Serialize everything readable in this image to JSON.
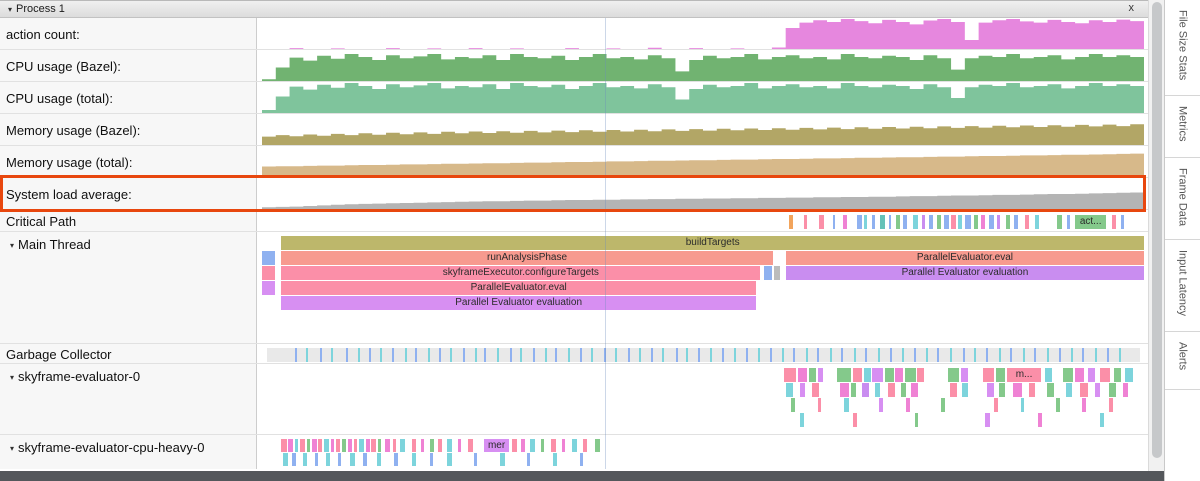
{
  "header": {
    "title": "Process 1",
    "close_label": "x"
  },
  "icons": {
    "collapse": "▾"
  },
  "palette": {
    "kh": "#bdb76b",
    "sa": "#f79a8f",
    "pk": "#fb8fa8",
    "vi": "#d78ff2",
    "pu": "#c98df0",
    "bl": "#8fb1f0",
    "cy": "#7dd4dc",
    "gr": "#84c98b",
    "ma": "#ef82d4",
    "or": "#f2a45c",
    "te": "#66c2b8",
    "gy": "#bcbcbc"
  },
  "counter_rows": [
    {
      "label": "action count:",
      "color": "#e687de",
      "values": [
        0,
        0,
        0.03,
        0,
        0,
        0.02,
        0,
        0,
        0,
        0.03,
        0,
        0,
        0.02,
        0,
        0,
        0.03,
        0,
        0,
        0.02,
        0,
        0,
        0,
        0.03,
        0,
        0,
        0.02,
        0,
        0,
        0.04,
        0,
        0,
        0.03,
        0,
        0,
        0.02,
        0,
        0,
        0.05,
        0.7,
        0.88,
        0.96,
        0.9,
        1,
        0.93,
        0.86,
        0.97,
        0.9,
        0.82,
        0.95,
        1,
        0.9,
        0.3,
        0.88,
        0.96,
        1,
        0.92,
        0.88,
        0.97,
        0.9,
        0.86,
        0.96,
        0.9,
        0.98,
        0.93
      ]
    },
    {
      "label": "CPU usage (Bazel):",
      "color": "#71b371",
      "values": [
        0.06,
        0.45,
        0.78,
        0.68,
        0.84,
        0.74,
        0.9,
        0.8,
        0.7,
        0.86,
        0.76,
        0.82,
        0.9,
        0.72,
        0.8,
        0.76,
        0.86,
        0.7,
        0.9,
        0.8,
        0.76,
        0.84,
        0.7,
        0.8,
        0.9,
        0.76,
        0.8,
        0.72,
        0.86,
        0.76,
        0.32,
        0.7,
        0.84,
        0.76,
        0.8,
        0.9,
        0.72,
        0.8,
        0.86,
        0.76,
        0.8,
        0.72,
        0.9,
        0.8,
        0.76,
        0.84,
        0.8,
        0.7,
        0.86,
        0.76,
        0.38,
        0.76,
        0.84,
        0.8,
        0.9,
        0.76,
        0.8,
        0.86,
        0.72,
        0.8,
        0.9,
        0.8,
        0.86,
        0.8
      ]
    },
    {
      "label": "CPU usage (total):",
      "color": "#7fc49c",
      "values": [
        0.1,
        0.55,
        0.88,
        0.78,
        0.94,
        0.84,
        1,
        0.9,
        0.8,
        0.96,
        0.86,
        0.92,
        1,
        0.82,
        0.9,
        0.86,
        0.96,
        0.8,
        1,
        0.9,
        0.86,
        0.94,
        0.8,
        0.9,
        1,
        0.86,
        0.9,
        0.82,
        0.96,
        0.86,
        0.45,
        0.8,
        0.94,
        0.86,
        0.9,
        1,
        0.82,
        0.9,
        0.96,
        0.86,
        0.9,
        0.82,
        1,
        0.9,
        0.86,
        0.94,
        0.9,
        0.8,
        0.96,
        0.86,
        0.5,
        0.86,
        0.94,
        0.9,
        1,
        0.86,
        0.9,
        0.96,
        0.82,
        0.9,
        1,
        0.9,
        0.96,
        0.9
      ]
    },
    {
      "label": "Memory usage (Bazel):",
      "color": "#b2a666",
      "values": [
        0.28,
        0.33,
        0.29,
        0.35,
        0.31,
        0.37,
        0.33,
        0.39,
        0.34,
        0.41,
        0.36,
        0.42,
        0.37,
        0.44,
        0.39,
        0.45,
        0.4,
        0.46,
        0.41,
        0.47,
        0.42,
        0.48,
        0.43,
        0.49,
        0.44,
        0.5,
        0.45,
        0.51,
        0.46,
        0.52,
        0.47,
        0.53,
        0.48,
        0.54,
        0.49,
        0.55,
        0.5,
        0.56,
        0.51,
        0.57,
        0.52,
        0.58,
        0.53,
        0.59,
        0.54,
        0.6,
        0.55,
        0.61,
        0.56,
        0.62,
        0.57,
        0.63,
        0.58,
        0.64,
        0.59,
        0.65,
        0.6,
        0.66,
        0.61,
        0.67,
        0.62,
        0.68,
        0.63,
        0.69
      ]
    },
    {
      "label": "Memory usage (total):",
      "color": "#d7b98a",
      "values": [
        0.35,
        0.36,
        0.36,
        0.37,
        0.38,
        0.38,
        0.39,
        0.4,
        0.4,
        0.41,
        0.42,
        0.42,
        0.43,
        0.44,
        0.44,
        0.45,
        0.46,
        0.46,
        0.47,
        0.48,
        0.48,
        0.49,
        0.5,
        0.5,
        0.51,
        0.52,
        0.52,
        0.53,
        0.54,
        0.54,
        0.55,
        0.56,
        0.56,
        0.57,
        0.58,
        0.58,
        0.59,
        0.6,
        0.6,
        0.61,
        0.62,
        0.62,
        0.63,
        0.64,
        0.64,
        0.65,
        0.66,
        0.66,
        0.67,
        0.68,
        0.68,
        0.69,
        0.7,
        0.7,
        0.71,
        0.72,
        0.72,
        0.73,
        0.74,
        0.74,
        0.75,
        0.76,
        0.77,
        0.78
      ]
    },
    {
      "label": "System load average:",
      "color": "#b4b4b4",
      "values": [
        0.06,
        0.07,
        0.08,
        0.1,
        0.12,
        0.14,
        0.16,
        0.17,
        0.18,
        0.19,
        0.2,
        0.21,
        0.22,
        0.23,
        0.24,
        0.25,
        0.26,
        0.26,
        0.27,
        0.28,
        0.28,
        0.29,
        0.3,
        0.3,
        0.31,
        0.31,
        0.32,
        0.32,
        0.33,
        0.33,
        0.34,
        0.34,
        0.35,
        0.35,
        0.36,
        0.36,
        0.37,
        0.37,
        0.38,
        0.38,
        0.39,
        0.39,
        0.4,
        0.4,
        0.41,
        0.41,
        0.42,
        0.43,
        0.43,
        0.44,
        0.45,
        0.45,
        0.46,
        0.47,
        0.47,
        0.48,
        0.49,
        0.5,
        0.5,
        0.51,
        0.52,
        0.53,
        0.54,
        0.55
      ]
    }
  ],
  "critical_path": {
    "label": "Critical Path",
    "slices": [
      [
        0.598,
        0.005,
        "or"
      ],
      [
        0.615,
        0.004,
        "pk"
      ],
      [
        0.632,
        0.006,
        "pk"
      ],
      [
        0.648,
        0.003,
        "bl"
      ],
      [
        0.66,
        0.004,
        "ma"
      ],
      [
        0.676,
        0.005,
        "bl"
      ],
      [
        0.684,
        0.003,
        "cy"
      ],
      [
        0.693,
        0.004,
        "bl"
      ],
      [
        0.702,
        0.006,
        "te"
      ],
      [
        0.712,
        0.003,
        "bl"
      ],
      [
        0.72,
        0.005,
        "gr"
      ],
      [
        0.729,
        0.004,
        "bl"
      ],
      [
        0.74,
        0.006,
        "cy"
      ],
      [
        0.75,
        0.004,
        "pu"
      ],
      [
        0.758,
        0.005,
        "bl"
      ],
      [
        0.768,
        0.004,
        "gr"
      ],
      [
        0.775,
        0.006,
        "bl"
      ],
      [
        0.784,
        0.005,
        "pk"
      ],
      [
        0.792,
        0.004,
        "cy"
      ],
      [
        0.8,
        0.006,
        "bl"
      ],
      [
        0.81,
        0.005,
        "gr"
      ],
      [
        0.818,
        0.004,
        "ma"
      ],
      [
        0.827,
        0.006,
        "bl"
      ],
      [
        0.836,
        0.004,
        "pu"
      ],
      [
        0.846,
        0.005,
        "gr"
      ],
      [
        0.856,
        0.004,
        "bl"
      ],
      [
        0.868,
        0.005,
        "pk"
      ],
      [
        0.88,
        0.004,
        "cy"
      ],
      [
        0.905,
        0.006,
        "gr"
      ],
      [
        0.916,
        0.004,
        "bl"
      ],
      [
        0.926,
        0.035,
        "gr",
        "act..."
      ],
      [
        0.968,
        0.005,
        "pk"
      ],
      [
        0.978,
        0.004,
        "bl"
      ]
    ]
  },
  "main_thread": {
    "label": "Main Thread",
    "levels": [
      [
        [
          0.022,
          0.978,
          "kh",
          "buildTargets"
        ]
      ],
      [
        [
          0,
          0.015,
          "bl"
        ],
        [
          0.022,
          0.557,
          "sa",
          "runAnalysisPhase"
        ],
        [
          0.594,
          0.406,
          "sa",
          "ParallelEvaluator.eval"
        ]
      ],
      [
        [
          0,
          0.015,
          "pk"
        ],
        [
          0.022,
          0.543,
          "pk",
          "skyframeExecutor.configureTargets"
        ],
        [
          0.569,
          0.009,
          "bl"
        ],
        [
          0.581,
          0.006,
          "gy"
        ],
        [
          0.594,
          0.406,
          "pu",
          "Parallel Evaluator evaluation"
        ]
      ],
      [
        [
          0,
          0.015,
          "vi"
        ],
        [
          0.022,
          0.538,
          "pk",
          "ParallelEvaluator.eval"
        ]
      ],
      [
        [
          0.022,
          0.538,
          "vi",
          "Parallel Evaluator evaluation"
        ]
      ]
    ]
  },
  "garbage_collector": {
    "label": "Garbage Collector",
    "ticks": [
      0.032,
      0.045,
      0.061,
      0.073,
      0.09,
      0.104,
      0.117,
      0.129,
      0.143,
      0.158,
      0.169,
      0.184,
      0.197,
      0.21,
      0.224,
      0.238,
      0.249,
      0.263,
      0.278,
      0.29,
      0.305,
      0.318,
      0.33,
      0.345,
      0.359,
      0.371,
      0.386,
      0.399,
      0.413,
      0.426,
      0.44,
      0.453,
      0.468,
      0.48,
      0.494,
      0.508,
      0.521,
      0.535,
      0.549,
      0.562,
      0.576,
      0.59,
      0.603,
      0.617,
      0.63,
      0.645,
      0.658,
      0.672,
      0.685,
      0.7,
      0.714,
      0.727,
      0.741,
      0.755,
      0.768,
      0.782,
      0.797,
      0.81,
      0.824,
      0.838,
      0.851,
      0.866,
      0.879,
      0.893,
      0.907,
      0.921,
      0.934,
      0.948,
      0.962,
      0.976
    ]
  },
  "evaluator0": {
    "label": "skyframe-evaluator-0",
    "rows": [
      [
        [
          0.592,
          0.014,
          "pk"
        ],
        [
          0.608,
          0.01,
          "ma"
        ],
        [
          0.62,
          0.008,
          "gr"
        ],
        [
          0.63,
          0.006,
          "vi"
        ],
        [
          0.652,
          0.016,
          "gr"
        ],
        [
          0.67,
          0.01,
          "pk"
        ],
        [
          0.682,
          0.008,
          "cy"
        ],
        [
          0.692,
          0.012,
          "vi"
        ],
        [
          0.706,
          0.01,
          "gr"
        ],
        [
          0.718,
          0.009,
          "ma"
        ],
        [
          0.729,
          0.012,
          "gr"
        ],
        [
          0.743,
          0.008,
          "pk"
        ],
        [
          0.778,
          0.012,
          "gr"
        ],
        [
          0.792,
          0.008,
          "vi"
        ],
        [
          0.818,
          0.012,
          "pk"
        ],
        [
          0.832,
          0.01,
          "gr"
        ],
        [
          0.845,
          0.038,
          "pk",
          "m..."
        ],
        [
          0.888,
          0.008,
          "cy"
        ],
        [
          0.908,
          0.012,
          "gr"
        ],
        [
          0.922,
          0.01,
          "ma"
        ],
        [
          0.936,
          0.008,
          "vi"
        ],
        [
          0.95,
          0.012,
          "pk"
        ],
        [
          0.966,
          0.008,
          "gr"
        ],
        [
          0.978,
          0.01,
          "cy"
        ]
      ],
      [
        [
          0.594,
          0.008,
          "cy"
        ],
        [
          0.61,
          0.006,
          "vi"
        ],
        [
          0.624,
          0.008,
          "pk"
        ],
        [
          0.655,
          0.01,
          "ma"
        ],
        [
          0.668,
          0.006,
          "gr"
        ],
        [
          0.68,
          0.008,
          "pu"
        ],
        [
          0.695,
          0.006,
          "cy"
        ],
        [
          0.71,
          0.008,
          "pk"
        ],
        [
          0.724,
          0.006,
          "gr"
        ],
        [
          0.736,
          0.008,
          "ma"
        ],
        [
          0.78,
          0.008,
          "pk"
        ],
        [
          0.794,
          0.006,
          "cy"
        ],
        [
          0.822,
          0.008,
          "vi"
        ],
        [
          0.836,
          0.006,
          "gr"
        ],
        [
          0.852,
          0.01,
          "ma"
        ],
        [
          0.87,
          0.006,
          "pk"
        ],
        [
          0.89,
          0.008,
          "gr"
        ],
        [
          0.912,
          0.006,
          "cy"
        ],
        [
          0.928,
          0.008,
          "pk"
        ],
        [
          0.944,
          0.006,
          "vi"
        ],
        [
          0.96,
          0.008,
          "gr"
        ],
        [
          0.976,
          0.006,
          "ma"
        ]
      ],
      [
        [
          0.6,
          0.004,
          "gr"
        ],
        [
          0.63,
          0.004,
          "pk"
        ],
        [
          0.66,
          0.005,
          "cy"
        ],
        [
          0.7,
          0.004,
          "vi"
        ],
        [
          0.73,
          0.005,
          "ma"
        ],
        [
          0.77,
          0.004,
          "gr"
        ],
        [
          0.83,
          0.005,
          "pk"
        ],
        [
          0.86,
          0.004,
          "cy"
        ],
        [
          0.9,
          0.005,
          "gr"
        ],
        [
          0.93,
          0.004,
          "ma"
        ],
        [
          0.96,
          0.005,
          "pk"
        ]
      ],
      [
        [
          0.61,
          0.004,
          "cy"
        ],
        [
          0.67,
          0.005,
          "pk"
        ],
        [
          0.74,
          0.004,
          "gr"
        ],
        [
          0.82,
          0.005,
          "vi"
        ],
        [
          0.88,
          0.004,
          "ma"
        ],
        [
          0.95,
          0.005,
          "cy"
        ]
      ]
    ]
  },
  "evaluator_cpu_heavy": {
    "label": "skyframe-evaluator-cpu-heavy-0",
    "rows": [
      [
        [
          0.022,
          0.006,
          "pk"
        ],
        [
          0.03,
          0.005,
          "ma"
        ],
        [
          0.037,
          0.004,
          "cy"
        ],
        [
          0.043,
          0.006,
          "pk"
        ],
        [
          0.051,
          0.004,
          "gr"
        ],
        [
          0.057,
          0.005,
          "ma"
        ],
        [
          0.064,
          0.004,
          "pk"
        ],
        [
          0.07,
          0.006,
          "cy"
        ],
        [
          0.078,
          0.004,
          "ma"
        ],
        [
          0.084,
          0.005,
          "pk"
        ],
        [
          0.091,
          0.004,
          "gr"
        ],
        [
          0.097,
          0.005,
          "ma"
        ],
        [
          0.104,
          0.004,
          "pk"
        ],
        [
          0.11,
          0.006,
          "cy"
        ],
        [
          0.118,
          0.004,
          "ma"
        ],
        [
          0.124,
          0.005,
          "pk"
        ],
        [
          0.131,
          0.004,
          "gr"
        ],
        [
          0.14,
          0.005,
          "ma"
        ],
        [
          0.148,
          0.004,
          "pk"
        ],
        [
          0.156,
          0.006,
          "cy"
        ],
        [
          0.17,
          0.005,
          "pk"
        ],
        [
          0.18,
          0.004,
          "ma"
        ],
        [
          0.19,
          0.005,
          "gr"
        ],
        [
          0.2,
          0.004,
          "pk"
        ],
        [
          0.21,
          0.005,
          "cy"
        ],
        [
          0.222,
          0.004,
          "ma"
        ],
        [
          0.234,
          0.005,
          "pk"
        ],
        [
          0.252,
          0.028,
          "vi",
          "mer"
        ],
        [
          0.284,
          0.005,
          "pk"
        ],
        [
          0.294,
          0.004,
          "ma"
        ],
        [
          0.304,
          0.005,
          "cy"
        ],
        [
          0.316,
          0.004,
          "gr"
        ],
        [
          0.328,
          0.005,
          "pk"
        ],
        [
          0.34,
          0.004,
          "ma"
        ],
        [
          0.352,
          0.005,
          "cy"
        ],
        [
          0.364,
          0.004,
          "pk"
        ],
        [
          0.378,
          0.005,
          "gr"
        ]
      ],
      [
        [
          0.024,
          0.005,
          "cy"
        ],
        [
          0.034,
          0.004,
          "bl"
        ],
        [
          0.046,
          0.005,
          "cy"
        ],
        [
          0.06,
          0.004,
          "bl"
        ],
        [
          0.072,
          0.005,
          "cy"
        ],
        [
          0.086,
          0.004,
          "bl"
        ],
        [
          0.1,
          0.005,
          "cy"
        ],
        [
          0.115,
          0.004,
          "bl"
        ],
        [
          0.13,
          0.005,
          "cy"
        ],
        [
          0.15,
          0.004,
          "bl"
        ],
        [
          0.17,
          0.005,
          "cy"
        ],
        [
          0.19,
          0.004,
          "bl"
        ],
        [
          0.21,
          0.005,
          "cy"
        ],
        [
          0.24,
          0.004,
          "bl"
        ],
        [
          0.27,
          0.005,
          "cy"
        ],
        [
          0.3,
          0.004,
          "bl"
        ],
        [
          0.33,
          0.005,
          "cy"
        ],
        [
          0.36,
          0.004,
          "bl"
        ]
      ]
    ]
  },
  "sidebar": {
    "tabs": [
      "File Size Stats",
      "Metrics",
      "Frame Data",
      "Input Latency",
      "Alerts"
    ]
  },
  "highlight_color": "#e8470e"
}
